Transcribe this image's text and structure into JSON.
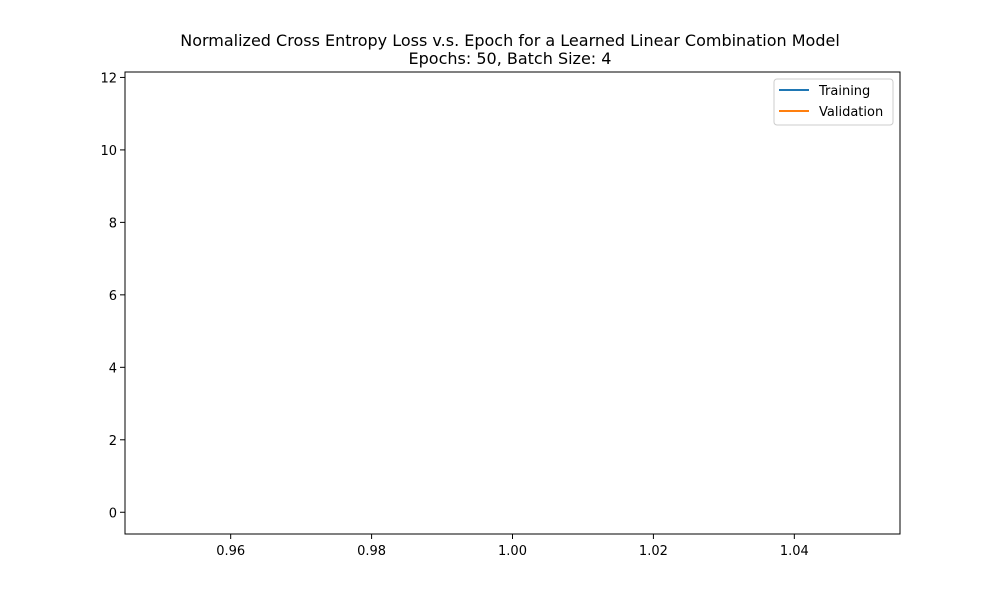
{
  "chart_data": {
    "type": "line",
    "title": "Normalized Cross Entropy Loss v.s. Epoch for a Learned Linear Combination Model",
    "subtitle": "Epochs: 50, Batch Size: 4",
    "xlabel": "",
    "ylabel": "",
    "xlim": [
      0.945,
      1.055
    ],
    "ylim": [
      -0.6,
      12.15
    ],
    "x_ticks": [
      "0.96",
      "0.98",
      "1.00",
      "1.02",
      "1.04"
    ],
    "x_tick_values": [
      0.96,
      0.98,
      1.0,
      1.02,
      1.04
    ],
    "y_ticks": [
      "0",
      "2",
      "4",
      "6",
      "8",
      "10",
      "12"
    ],
    "y_tick_values": [
      0,
      2,
      4,
      6,
      8,
      10,
      12
    ],
    "grid": false,
    "legend_position": "top-right",
    "series": [
      {
        "name": "Training",
        "color": "#1f77b4",
        "x": [],
        "y": []
      },
      {
        "name": "Validation",
        "color": "#ff7f0e",
        "x": [],
        "y": []
      }
    ]
  }
}
